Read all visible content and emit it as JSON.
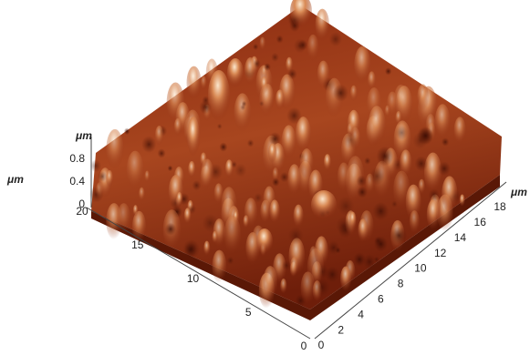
{
  "side_label": "μm",
  "z_axis": {
    "unit": "μm",
    "ticks": [
      0.8,
      0.4,
      0
    ]
  },
  "left_axis": {
    "ticks": [
      20,
      15,
      10,
      5,
      0
    ]
  },
  "right_axis": {
    "unit": "μm",
    "ticks": [
      0,
      2,
      4,
      6,
      8,
      10,
      12,
      14,
      16,
      18
    ]
  }
}
